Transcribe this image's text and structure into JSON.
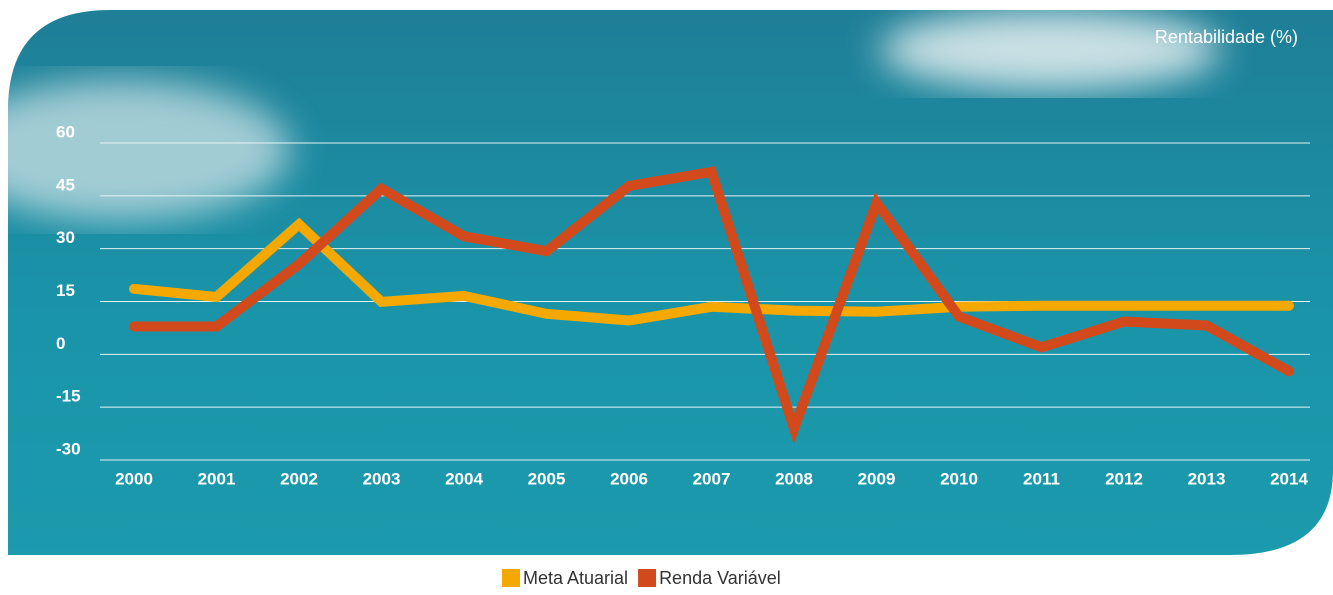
{
  "chart_data": {
    "type": "line",
    "y_axis_label": "Rentabilidade (%)",
    "categories": [
      "2000",
      "2001",
      "2002",
      "2003",
      "2004",
      "2005",
      "2006",
      "2007",
      "2008",
      "2009",
      "2010",
      "2011",
      "2012",
      "2013",
      "2014"
    ],
    "series": [
      {
        "name": "Meta Atuarial",
        "color": "#f5a800",
        "values": [
          18.6,
          16.3,
          36.9,
          14.9,
          16.6,
          11.5,
          9.6,
          13.5,
          12.4,
          12.1,
          13.5,
          13.8,
          13.8,
          13.8,
          13.8
        ]
      },
      {
        "name": "Renda Variável",
        "color": "#d24a1c",
        "values": [
          7.9,
          7.9,
          25.6,
          47,
          33.5,
          29.3,
          47.8,
          51.8,
          -21.1,
          43,
          10.7,
          2,
          9.3,
          8.2,
          -4.8
        ]
      }
    ],
    "ylim": [
      -30,
      60
    ],
    "yticks": [
      -30,
      -15,
      0,
      15,
      30,
      45,
      60
    ],
    "grid": true
  }
}
